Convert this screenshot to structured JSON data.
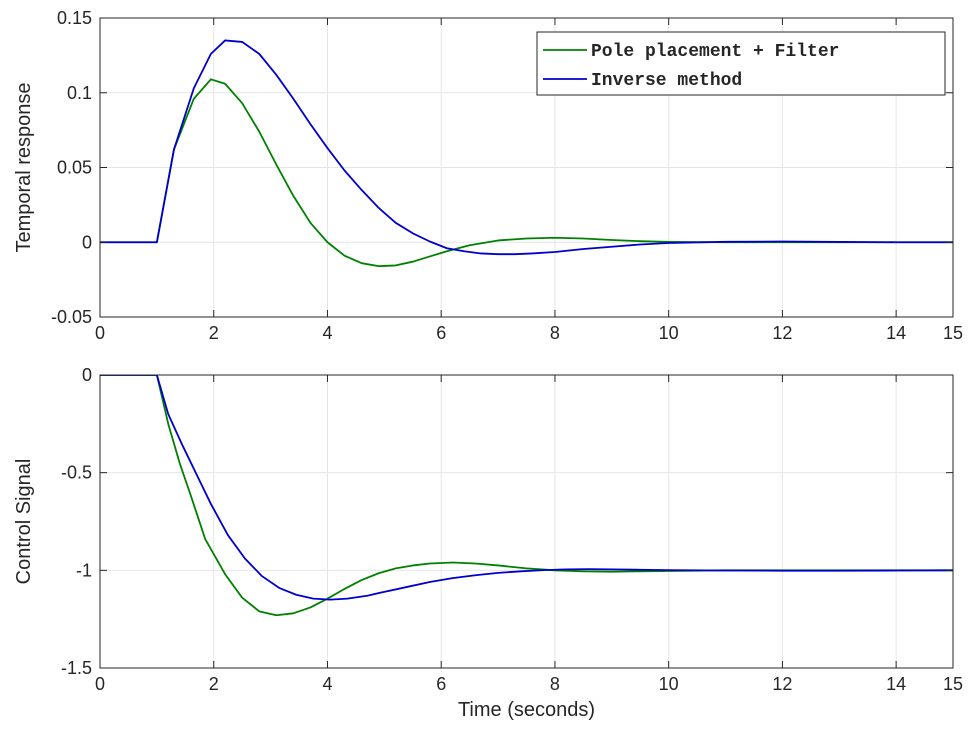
{
  "chart_data": [
    {
      "type": "line",
      "xlabel": "",
      "ylabel": "Temporal response",
      "xlim": [
        0,
        15
      ],
      "ylim": [
        -0.05,
        0.15
      ],
      "xticks": [
        0,
        2,
        4,
        6,
        8,
        10,
        12,
        14,
        15
      ],
      "xtick_labels": [
        "0",
        "2",
        "4",
        "6",
        "8",
        "10",
        "12",
        "14",
        "15"
      ],
      "yticks": [
        -0.05,
        0,
        0.05,
        0.1,
        0.15
      ],
      "ytick_labels": [
        "-0.05",
        "0",
        "0.05",
        "0.1",
        "0.15"
      ],
      "grid": true,
      "legend_position": "top-right",
      "series": [
        {
          "name": "Pole placement + Filter",
          "color": "#008000",
          "x": [
            0,
            1,
            1.3,
            1.65,
            1.95,
            2.2,
            2.5,
            2.8,
            3.1,
            3.4,
            3.7,
            4.0,
            4.3,
            4.6,
            4.9,
            5.2,
            5.5,
            5.8,
            6.1,
            6.5,
            7.0,
            7.5,
            8.0,
            8.5,
            9.0,
            9.5,
            10,
            11,
            12,
            13,
            14,
            15
          ],
          "values": [
            0,
            0,
            0.062,
            0.096,
            0.109,
            0.106,
            0.093,
            0.074,
            0.052,
            0.031,
            0.013,
            0.0,
            -0.009,
            -0.014,
            -0.016,
            -0.0155,
            -0.013,
            -0.0095,
            -0.006,
            -0.002,
            0.0012,
            0.0025,
            0.003,
            0.0025,
            0.0015,
            0.0007,
            0.0002,
            0,
            0,
            0,
            0,
            0
          ]
        },
        {
          "name": "Inverse method",
          "color": "#0000cc",
          "x": [
            0,
            1,
            1.3,
            1.65,
            1.95,
            2.2,
            2.5,
            2.8,
            3.1,
            3.4,
            3.7,
            4.0,
            4.3,
            4.6,
            4.9,
            5.2,
            5.5,
            5.8,
            6.1,
            6.4,
            6.7,
            7.0,
            7.3,
            7.6,
            8.0,
            8.5,
            9.0,
            9.5,
            10,
            11,
            12,
            13,
            14,
            15
          ],
          "values": [
            0,
            0,
            0.062,
            0.103,
            0.126,
            0.135,
            0.134,
            0.126,
            0.112,
            0.096,
            0.079,
            0.063,
            0.048,
            0.035,
            0.023,
            0.013,
            0.006,
            0.0005,
            -0.004,
            -0.006,
            -0.0075,
            -0.008,
            -0.008,
            -0.0075,
            -0.0065,
            -0.0045,
            -0.003,
            -0.0015,
            -0.0005,
            0.0003,
            0.0005,
            0.0002,
            0,
            0
          ]
        }
      ]
    },
    {
      "type": "line",
      "xlabel": "Time (seconds)",
      "ylabel": "Control Signal",
      "xlim": [
        0,
        15
      ],
      "ylim": [
        -1.5,
        0
      ],
      "xticks": [
        0,
        2,
        4,
        6,
        8,
        10,
        12,
        14,
        15
      ],
      "xtick_labels": [
        "0",
        "2",
        "4",
        "6",
        "8",
        "10",
        "12",
        "14",
        "15"
      ],
      "yticks": [
        -1.5,
        -1,
        -0.5,
        0
      ],
      "ytick_labels": [
        "-1.5",
        "-1",
        "-0.5",
        "0"
      ],
      "grid": true,
      "series": [
        {
          "name": "Pole placement + Filter",
          "color": "#008000",
          "x": [
            0,
            1,
            1.2,
            1.4,
            1.6,
            1.85,
            2.2,
            2.5,
            2.8,
            3.1,
            3.4,
            3.7,
            4.0,
            4.3,
            4.6,
            4.9,
            5.2,
            5.5,
            5.8,
            6.2,
            6.6,
            7.0,
            7.5,
            8.0,
            8.5,
            9.0,
            9.5,
            10,
            11,
            12,
            13,
            14,
            15
          ],
          "values": [
            0,
            0,
            -0.25,
            -0.45,
            -0.62,
            -0.84,
            -1.02,
            -1.14,
            -1.21,
            -1.23,
            -1.22,
            -1.19,
            -1.145,
            -1.095,
            -1.05,
            -1.015,
            -0.99,
            -0.975,
            -0.965,
            -0.96,
            -0.965,
            -0.975,
            -0.99,
            -1.0,
            -1.005,
            -1.007,
            -1.005,
            -1.003,
            -1.0,
            -1.0,
            -1.0,
            -1.0,
            -1.0
          ]
        },
        {
          "name": "Inverse method",
          "color": "#0000cc",
          "x": [
            0,
            1,
            1.2,
            1.45,
            1.7,
            1.95,
            2.25,
            2.55,
            2.85,
            3.15,
            3.45,
            3.75,
            4.05,
            4.35,
            4.7,
            5.0,
            5.4,
            5.8,
            6.2,
            6.6,
            7.0,
            7.4,
            7.8,
            8.2,
            8.6,
            9.0,
            9.5,
            10,
            11,
            12,
            13,
            14,
            15
          ],
          "values": [
            0,
            0,
            -0.2,
            -0.36,
            -0.51,
            -0.66,
            -0.82,
            -0.94,
            -1.03,
            -1.09,
            -1.125,
            -1.145,
            -1.15,
            -1.145,
            -1.13,
            -1.11,
            -1.085,
            -1.06,
            -1.04,
            -1.025,
            -1.013,
            -1.005,
            -0.999,
            -0.995,
            -0.994,
            -0.995,
            -0.997,
            -0.999,
            -1.001,
            -1.002,
            -1.002,
            -1.001,
            -1.0
          ]
        }
      ]
    }
  ]
}
